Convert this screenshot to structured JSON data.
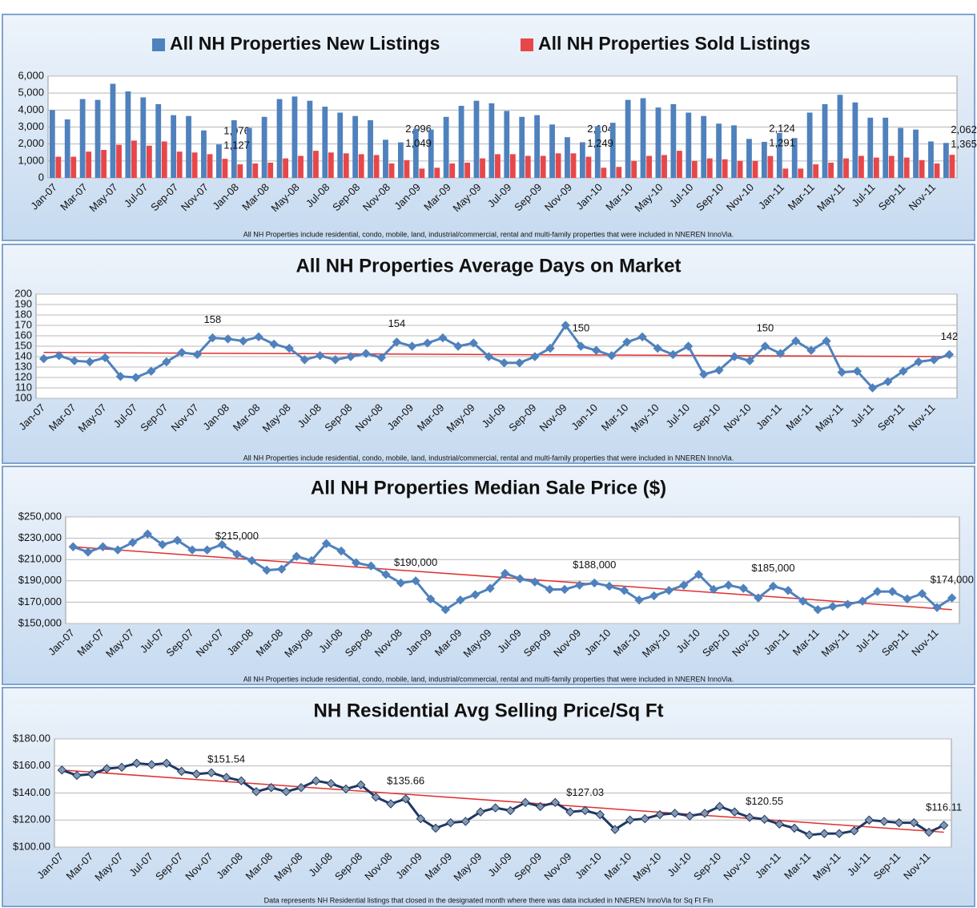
{
  "chart_data": [
    {
      "type": "bar",
      "categories": [
        "Jan-07",
        null,
        "Mar-07",
        null,
        "May-07",
        null,
        "Jul-07",
        null,
        "Sep-07",
        null,
        "Nov-07",
        null,
        "Jan-08",
        null,
        "Mar-08",
        null,
        "May-08",
        null,
        "Jul-08",
        null,
        "Sep-08",
        null,
        "Nov-08",
        null,
        "Jan-09",
        null,
        "Mar-09",
        null,
        "May-09",
        null,
        "Jul-09",
        null,
        "Sep-09",
        null,
        "Nov-09",
        null,
        "Jan-10",
        null,
        "Mar-10",
        null,
        "May-10",
        null,
        "Jul-10",
        null,
        "Sep-10",
        null,
        "Nov-10",
        null,
        "Jan-11",
        null,
        "Mar-11",
        null,
        "May-11",
        null,
        "Jul-11",
        null,
        "Sep-11",
        null,
        "Nov-11",
        null
      ],
      "series": [
        {
          "name": "All NH Properties New Listings",
          "color": "#4f81bd",
          "values": [
            4000,
            3450,
            4650,
            4600,
            5550,
            5100,
            4750,
            4350,
            3700,
            3650,
            2800,
            1976,
            3400,
            2950,
            3600,
            4650,
            4800,
            4550,
            4200,
            3850,
            3650,
            3400,
            2250,
            2096,
            2900,
            2850,
            3600,
            4250,
            4550,
            4400,
            3950,
            3600,
            3700,
            3150,
            2400,
            2104,
            3050,
            3250,
            4600,
            4700,
            4150,
            4350,
            3850,
            3650,
            3200,
            3100,
            2300,
            2124,
            2650,
            2350,
            3850,
            4350,
            4900,
            4450,
            3550,
            3550,
            2950,
            2850,
            2150,
            2062
          ],
          "value_labels": [
            null,
            null,
            null,
            null,
            null,
            null,
            null,
            null,
            null,
            null,
            null,
            "1,976",
            null,
            null,
            null,
            null,
            null,
            null,
            null,
            null,
            null,
            null,
            null,
            "2,096",
            null,
            null,
            null,
            null,
            null,
            null,
            null,
            null,
            null,
            null,
            null,
            "2,104",
            null,
            null,
            null,
            null,
            null,
            null,
            null,
            null,
            null,
            null,
            null,
            "2,124",
            null,
            null,
            null,
            null,
            null,
            null,
            null,
            null,
            null,
            null,
            null,
            "2,062"
          ]
        },
        {
          "name": "All NH Properties Sold Listings",
          "color": "#e8474a",
          "values": [
            1250,
            1250,
            1550,
            1650,
            1950,
            2200,
            1900,
            2150,
            1550,
            1500,
            1400,
            1127,
            800,
            850,
            900,
            1150,
            1300,
            1600,
            1500,
            1450,
            1400,
            1350,
            850,
            1049,
            550,
            600,
            850,
            900,
            1150,
            1400,
            1400,
            1300,
            1300,
            1450,
            1450,
            1249,
            600,
            650,
            1000,
            1300,
            1350,
            1600,
            1000,
            1150,
            1100,
            1000,
            1000,
            1291,
            550,
            550,
            800,
            900,
            1150,
            1300,
            1200,
            1300,
            1200,
            1050,
            850,
            1365
          ],
          "value_labels": [
            null,
            null,
            null,
            null,
            null,
            null,
            null,
            null,
            null,
            null,
            null,
            "1,127",
            null,
            null,
            null,
            null,
            null,
            null,
            null,
            null,
            null,
            null,
            null,
            "1,049",
            null,
            null,
            null,
            null,
            null,
            null,
            null,
            null,
            null,
            null,
            null,
            "1,249",
            null,
            null,
            null,
            null,
            null,
            null,
            null,
            null,
            null,
            null,
            null,
            "1,291",
            null,
            null,
            null,
            null,
            null,
            null,
            null,
            null,
            null,
            null,
            null,
            "1,365"
          ]
        }
      ],
      "ylim": [
        0,
        6000
      ],
      "yticks": [
        0,
        {
          "value": 1000,
          "label": "1,000"
        },
        {
          "value": 2000,
          "label": "2,000"
        },
        {
          "value": 3000,
          "label": "3,000"
        },
        {
          "value": 4000,
          "label": "4,000"
        },
        {
          "value": 5000,
          "label": "5,000"
        },
        {
          "value": 6000,
          "label": "6,000"
        }
      ],
      "grid": true,
      "footnote": "All NH Properties  include residential, condo, mobile, land, industrial/commercial, rental and multi-family properties that were included in NNEREN InnoVia."
    },
    {
      "type": "line",
      "title": "All NH Properties Average Days on Market",
      "categories": [
        "Jan-07",
        null,
        "Mar-07",
        null,
        "May-07",
        null,
        "Jul-07",
        null,
        "Sep-07",
        null,
        "Nov-07",
        null,
        "Jan-08",
        null,
        "Mar-08",
        null,
        "May-08",
        null,
        "Jul-08",
        null,
        "Sep-08",
        null,
        "Nov-08",
        null,
        "Jan-09",
        null,
        "Mar-09",
        null,
        "May-09",
        null,
        "Jul-09",
        null,
        "Sep-09",
        null,
        "Nov-09",
        null,
        "Jan-10",
        null,
        "Mar-10",
        null,
        "May-10",
        null,
        "Jul-10",
        null,
        "Sep-10",
        null,
        "Nov-10",
        null,
        "Jan-11",
        null,
        "Mar-11",
        null,
        "May-11",
        null,
        "Jul-11",
        null,
        "Sep-11",
        null,
        "Nov-11",
        null
      ],
      "values": [
        138,
        141,
        136,
        135,
        139,
        121,
        120,
        126,
        135,
        144,
        142,
        158,
        157,
        155,
        159,
        152,
        148,
        137,
        141,
        137,
        140,
        143,
        139,
        154,
        150,
        153,
        158,
        150,
        153,
        140,
        134,
        134,
        140,
        148,
        170,
        150,
        146,
        141,
        154,
        159,
        148,
        142,
        150,
        123,
        127,
        140,
        136,
        150,
        143,
        155,
        146,
        155,
        125,
        126,
        110,
        116,
        126,
        135,
        137,
        142
      ],
      "value_labels": [
        null,
        null,
        null,
        null,
        null,
        null,
        null,
        null,
        null,
        null,
        null,
        "158",
        null,
        null,
        null,
        null,
        null,
        null,
        null,
        null,
        null,
        null,
        null,
        "154",
        null,
        null,
        null,
        null,
        null,
        null,
        null,
        null,
        null,
        null,
        null,
        "150",
        null,
        null,
        null,
        null,
        null,
        null,
        null,
        null,
        null,
        null,
        null,
        "150",
        null,
        null,
        null,
        null,
        null,
        null,
        null,
        null,
        null,
        null,
        null,
        "142"
      ],
      "color": "#4f81bd",
      "marker_color": "#4f81bd",
      "trend_line": [
        144,
        140
      ],
      "trend_color": "#e03030",
      "ylim": [
        100,
        200
      ],
      "yticks": [
        100,
        110,
        120,
        130,
        140,
        150,
        160,
        170,
        180,
        190,
        200
      ],
      "grid": true,
      "footnote": "All NH Properties  include residential, condo, mobile, land, industrial/commercial, rental and multi-family properties that were included in NNEREN InnoVia."
    },
    {
      "type": "line",
      "title": "All NH Properties Median Sale Price ($)",
      "categories": [
        "Jan-07",
        null,
        "Mar-07",
        null,
        "May-07",
        null,
        "Jul-07",
        null,
        "Sep-07",
        null,
        "Nov-07",
        null,
        "Jan-08",
        null,
        "Mar-08",
        null,
        "May-08",
        null,
        "Jul-08",
        null,
        "Sep-08",
        null,
        "Nov-08",
        null,
        "Jan-09",
        null,
        "Mar-09",
        null,
        "May-09",
        null,
        "Jul-09",
        null,
        "Sep-09",
        null,
        "Nov-09",
        null,
        "Jan-10",
        null,
        "Mar-10",
        null,
        "May-10",
        null,
        "Jul-10",
        null,
        "Sep-10",
        null,
        "Nov-10",
        null,
        "Jan-11",
        null,
        "Mar-11",
        null,
        "May-11",
        null,
        "Jul-11",
        null,
        "Sep-11",
        null,
        "Nov-11",
        null
      ],
      "values": [
        222000,
        217000,
        222000,
        219000,
        226000,
        234000,
        224000,
        228000,
        219000,
        219000,
        224000,
        215000,
        209000,
        200000,
        201000,
        213000,
        209000,
        225000,
        218000,
        207000,
        204000,
        196000,
        188000,
        190000,
        173000,
        163000,
        172000,
        177000,
        183000,
        197000,
        192000,
        189000,
        182000,
        182000,
        186000,
        188000,
        185000,
        181000,
        172000,
        176000,
        181000,
        186000,
        196000,
        182000,
        186000,
        183000,
        174000,
        185000,
        181000,
        171000,
        163000,
        166000,
        168000,
        171000,
        180000,
        180000,
        173000,
        178000,
        165000,
        174000
      ],
      "value_labels": [
        null,
        null,
        null,
        null,
        null,
        null,
        null,
        null,
        null,
        null,
        null,
        "$215,000",
        null,
        null,
        null,
        null,
        null,
        null,
        null,
        null,
        null,
        null,
        null,
        "$190,000",
        null,
        null,
        null,
        null,
        null,
        null,
        null,
        null,
        null,
        null,
        null,
        "$188,000",
        null,
        null,
        null,
        null,
        null,
        null,
        null,
        null,
        null,
        null,
        null,
        "$185,000",
        null,
        null,
        null,
        null,
        null,
        null,
        null,
        null,
        null,
        null,
        null,
        "$174,000"
      ],
      "color": "#4f81bd",
      "marker_color": "#4f81bd",
      "trend_line": [
        222000,
        163000
      ],
      "trend_color": "#e03030",
      "ylim": [
        150000,
        250000
      ],
      "yticks": [
        {
          "value": 150000,
          "label": "$150,000"
        },
        {
          "value": 170000,
          "label": "$170,000"
        },
        {
          "value": 190000,
          "label": "$190,000"
        },
        {
          "value": 210000,
          "label": "$210,000"
        },
        {
          "value": 230000,
          "label": "$230,000"
        },
        {
          "value": 250000,
          "label": "$250,000"
        }
      ],
      "grid": true,
      "footnote": "All NH Properties  include residential, condo, mobile, land, industrial/commercial, rental and multi-family properties that were included in NNEREN InnoVia."
    },
    {
      "type": "line",
      "title": "NH Residential Avg Selling Price/Sq Ft",
      "categories": [
        "Jan-07",
        null,
        "Mar-07",
        null,
        "May-07",
        null,
        "Jul-07",
        null,
        "Sep-07",
        null,
        "Nov-07",
        null,
        "Jan-08",
        null,
        "Mar-08",
        null,
        "May-08",
        null,
        "Jul-08",
        null,
        "Sep-08",
        null,
        "Nov-08",
        null,
        "Jan-09",
        null,
        "Mar-09",
        null,
        "May-09",
        null,
        "Jul-09",
        null,
        "Sep-09",
        null,
        "Nov-09",
        null,
        "Jan-10",
        null,
        "Mar-10",
        null,
        "May-10",
        null,
        "Jul-10",
        null,
        "Sep-10",
        null,
        "Nov-10",
        null,
        "Jan-11",
        null,
        "Mar-11",
        null,
        "May-11",
        null,
        "Jul-11",
        null,
        "Sep-11",
        null,
        "Nov-11",
        null
      ],
      "values": [
        157,
        153,
        154,
        158,
        159,
        162,
        161,
        162,
        156,
        154,
        155,
        151.54,
        149,
        141,
        144,
        141,
        144,
        149,
        147,
        143,
        146,
        137,
        132,
        135.66,
        121,
        114,
        118,
        119,
        126,
        129,
        127,
        133,
        130,
        133,
        126,
        127.03,
        124,
        113,
        120,
        121,
        124,
        125,
        123,
        125,
        130,
        126,
        122,
        120.55,
        117,
        114,
        109,
        110,
        110,
        112,
        120,
        119,
        118,
        118,
        111,
        116.11
      ],
      "value_labels": [
        null,
        null,
        null,
        null,
        null,
        null,
        null,
        null,
        null,
        null,
        null,
        "$151.54",
        null,
        null,
        null,
        null,
        null,
        null,
        null,
        null,
        null,
        null,
        null,
        "$135.66",
        null,
        null,
        null,
        null,
        null,
        null,
        null,
        null,
        null,
        null,
        null,
        "$127.03",
        null,
        null,
        null,
        null,
        null,
        null,
        null,
        null,
        null,
        null,
        null,
        "$120.55",
        null,
        null,
        null,
        null,
        null,
        null,
        null,
        null,
        null,
        null,
        null,
        "$116.11"
      ],
      "color": "#1f3864",
      "marker_color": "#8497b0",
      "trend_line": [
        157,
        111
      ],
      "trend_color": "#e03030",
      "ylim": [
        100,
        180
      ],
      "yticks": [
        {
          "value": 100,
          "label": "$100.00"
        },
        {
          "value": 120,
          "label": "$120.00"
        },
        {
          "value": 140,
          "label": "$140.00"
        },
        {
          "value": 160,
          "label": "$160.00"
        },
        {
          "value": 180,
          "label": "$180.00"
        }
      ],
      "grid": true,
      "footnote": "Data represents NH Residential listings that closed in the designated month where there was data included in NNEREN InnoVia for Sq Ft Fin"
    }
  ]
}
